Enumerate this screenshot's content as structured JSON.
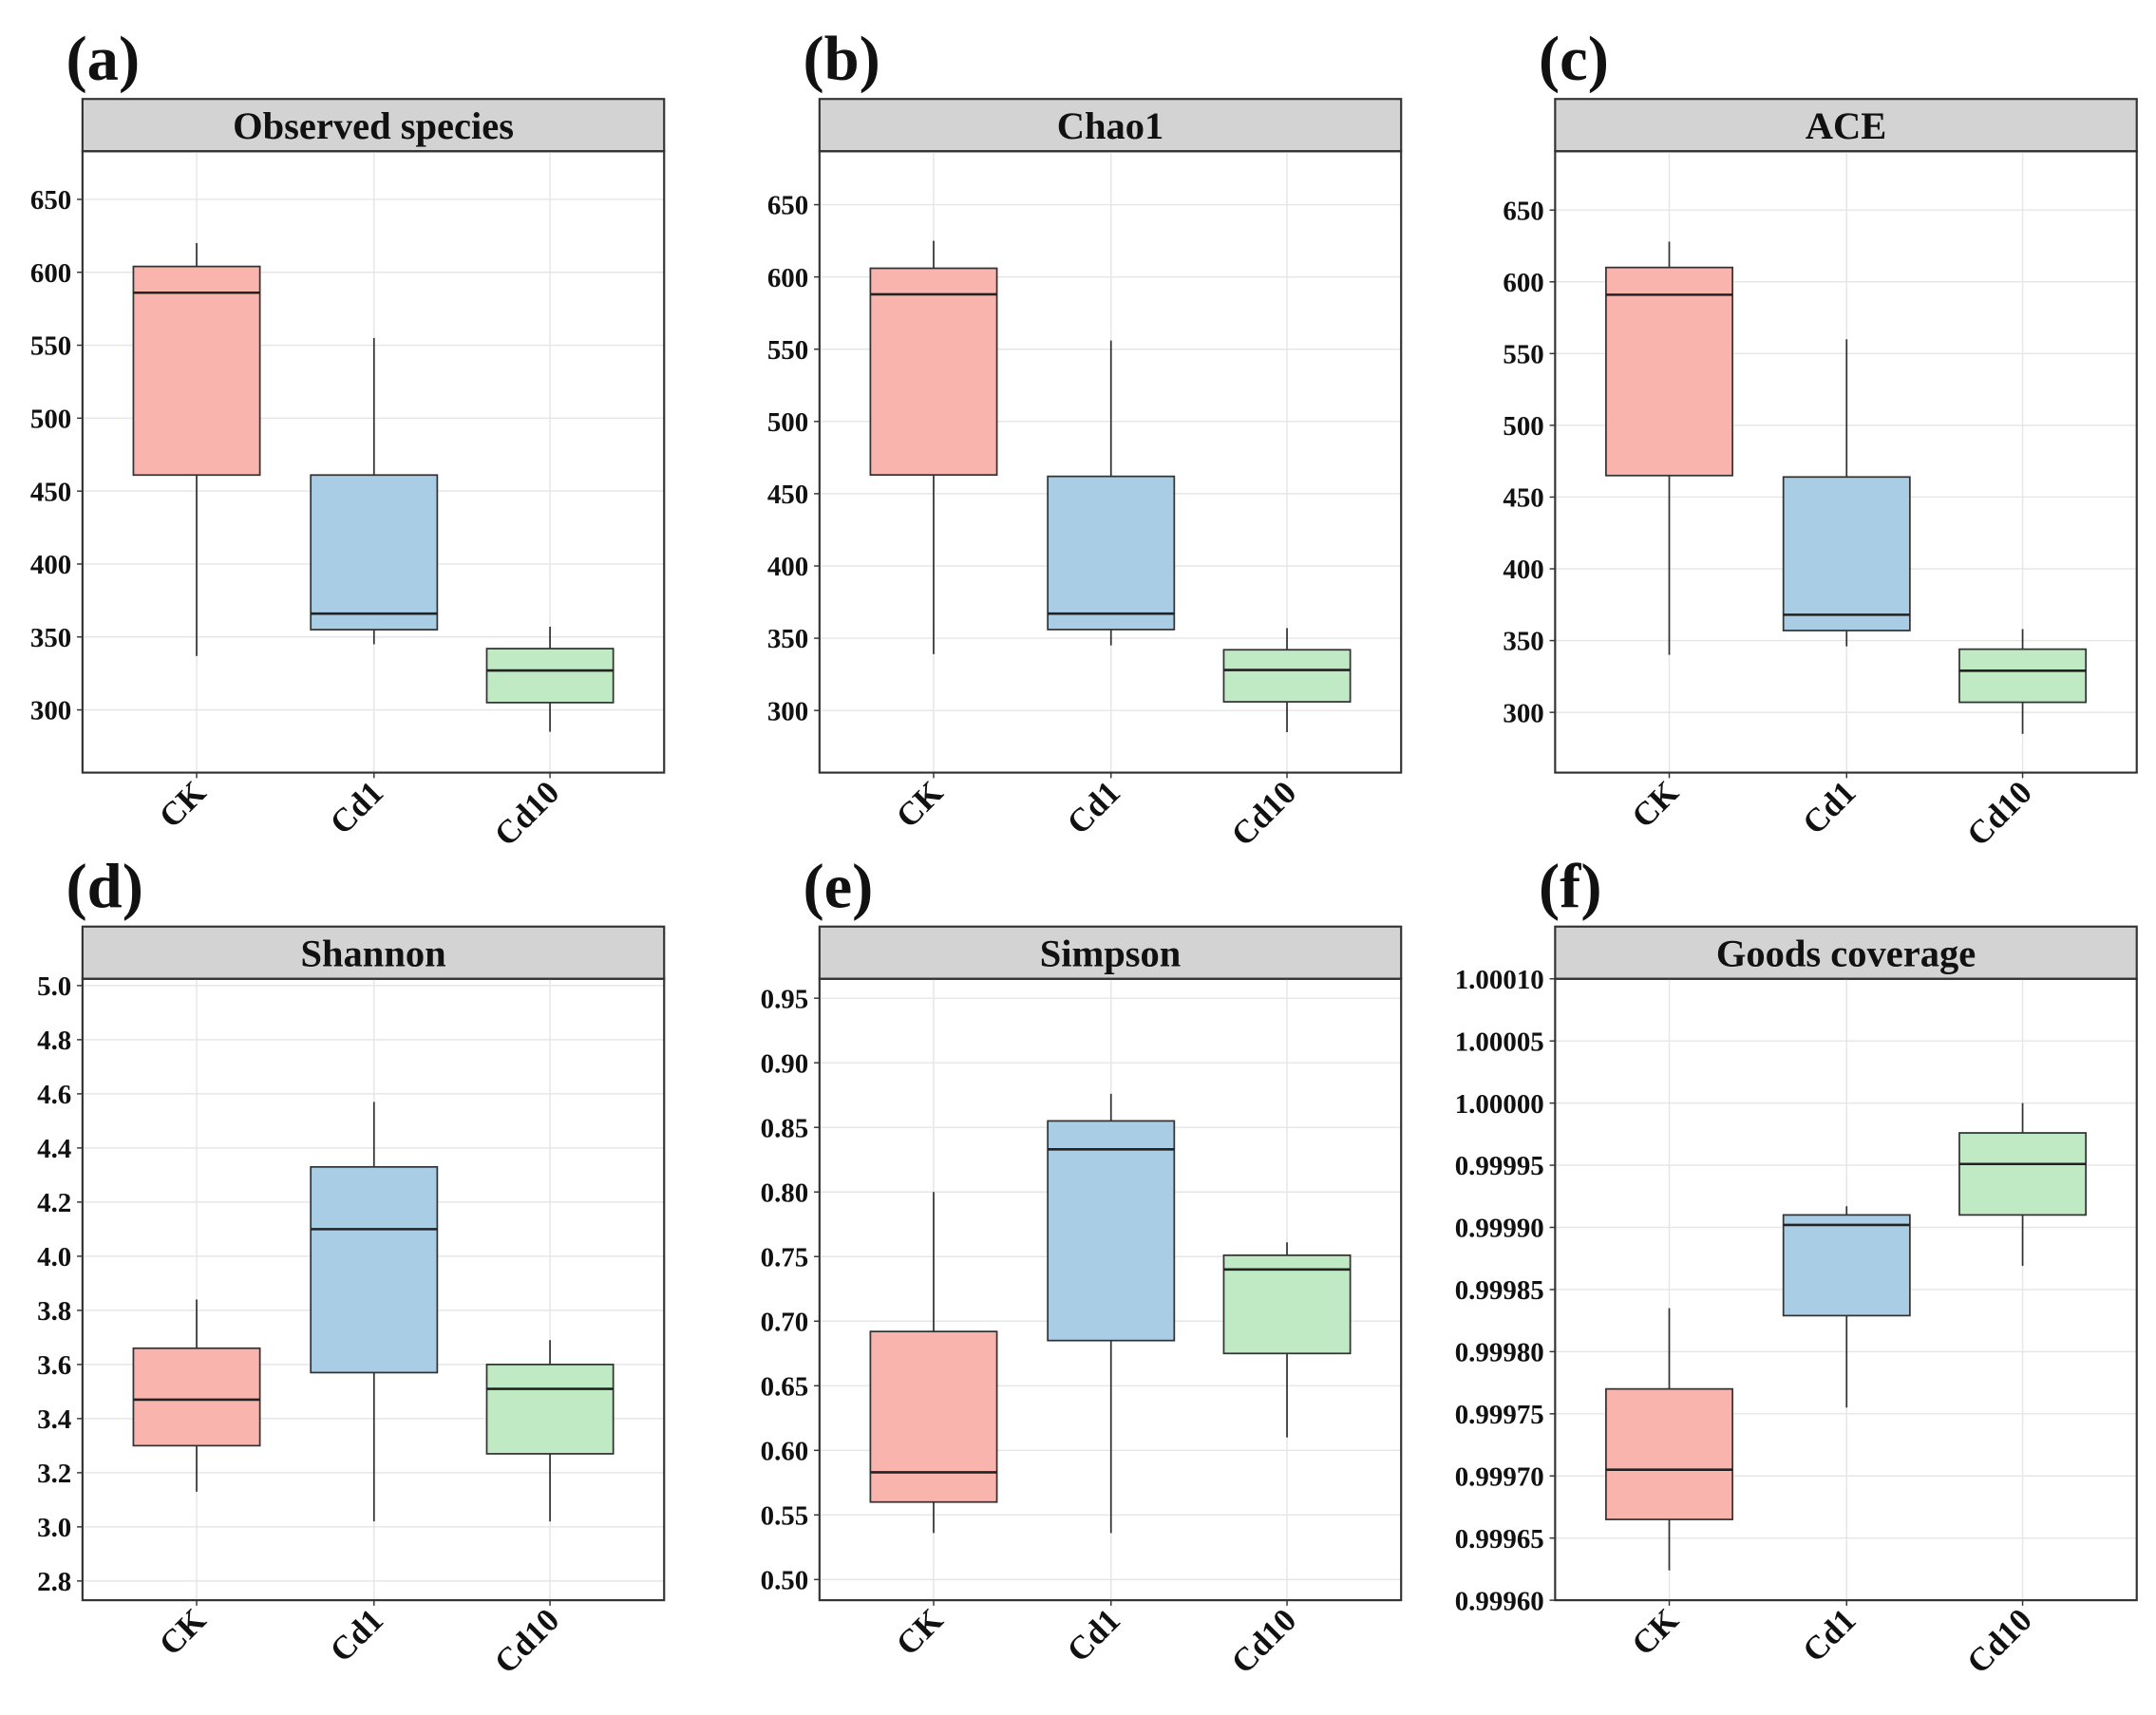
{
  "chart_data": [
    {
      "type": "box",
      "panel": "(a)",
      "title": "Observed species",
      "categories": [
        "CK",
        "Cd1",
        "Cd10"
      ],
      "colors": [
        "#f9b4ae",
        "#a9cde5",
        "#c0eac4"
      ],
      "boxes": [
        {
          "min": 337,
          "q1": 461,
          "median": 586,
          "q3": 604,
          "max": 620
        },
        {
          "min": 345,
          "q1": 355,
          "median": 366,
          "q3": 461,
          "max": 555
        },
        {
          "min": 285,
          "q1": 305,
          "median": 327,
          "q3": 342,
          "max": 357
        }
      ],
      "ylim": [
        257,
        683
      ],
      "yticks": [
        300,
        350,
        400,
        450,
        500,
        550,
        600,
        650
      ],
      "grid": true
    },
    {
      "type": "box",
      "panel": "(b)",
      "title": "Chao1",
      "categories": [
        "CK",
        "Cd1",
        "Cd10"
      ],
      "colors": [
        "#f9b4ae",
        "#a9cde5",
        "#c0eac4"
      ],
      "boxes": [
        {
          "min": 339,
          "q1": 463,
          "median": 588,
          "q3": 606,
          "max": 625
        },
        {
          "min": 345,
          "q1": 356,
          "median": 367,
          "q3": 462,
          "max": 556
        },
        {
          "min": 285,
          "q1": 306,
          "median": 328,
          "q3": 342,
          "max": 357
        }
      ],
      "ylim": [
        257,
        687
      ],
      "yticks": [
        300,
        350,
        400,
        450,
        500,
        550,
        600,
        650
      ],
      "grid": true
    },
    {
      "type": "box",
      "panel": "(c)",
      "title": "ACE",
      "categories": [
        "CK",
        "Cd1",
        "Cd10"
      ],
      "colors": [
        "#f9b4ae",
        "#a9cde5",
        "#c0eac4"
      ],
      "boxes": [
        {
          "min": 340,
          "q1": 465,
          "median": 591,
          "q3": 610,
          "max": 628
        },
        {
          "min": 346,
          "q1": 357,
          "median": 368,
          "q3": 464,
          "max": 560
        },
        {
          "min": 285,
          "q1": 307,
          "median": 329,
          "q3": 344,
          "max": 358
        }
      ],
      "ylim": [
        258,
        691
      ],
      "yticks": [
        300,
        350,
        400,
        450,
        500,
        550,
        600,
        650
      ],
      "grid": true
    },
    {
      "type": "box",
      "panel": "(d)",
      "title": "Shannon",
      "categories": [
        "CK",
        "Cd1",
        "Cd10"
      ],
      "colors": [
        "#f9b4ae",
        "#a9cde5",
        "#c0eac4"
      ],
      "boxes": [
        {
          "min": 3.13,
          "q1": 3.3,
          "median": 3.47,
          "q3": 3.66,
          "max": 3.84
        },
        {
          "min": 3.02,
          "q1": 3.57,
          "median": 4.1,
          "q3": 4.33,
          "max": 4.57
        },
        {
          "min": 3.02,
          "q1": 3.27,
          "median": 3.51,
          "q3": 3.6,
          "max": 3.69
        }
      ],
      "ylim": [
        2.729,
        5.025
      ],
      "yticks": [
        2.8,
        {
          "value": 3,
          "label": "3.0"
        },
        3.2,
        3.4,
        3.6,
        3.8,
        {
          "value": 4,
          "label": "4.0"
        },
        4.2,
        4.4,
        4.6,
        4.8,
        {
          "value": 5,
          "label": "5.0"
        }
      ],
      "grid": true
    },
    {
      "type": "box",
      "panel": "(e)",
      "title": "Simpson",
      "categories": [
        "CK",
        "Cd1",
        "Cd10"
      ],
      "colors": [
        "#f9b4ae",
        "#a9cde5",
        "#c0eac4"
      ],
      "boxes": [
        {
          "min": 0.536,
          "q1": 0.56,
          "median": 0.583,
          "q3": 0.692,
          "max": 0.8
        },
        {
          "min": 0.536,
          "q1": 0.685,
          "median": 0.833,
          "q3": 0.855,
          "max": 0.876
        },
        {
          "min": 0.61,
          "q1": 0.675,
          "median": 0.74,
          "q3": 0.751,
          "max": 0.761
        }
      ],
      "ylim": [
        0.484,
        0.965
      ],
      "yticks": [
        {
          "value": 0.5,
          "label": "0.50"
        },
        0.55,
        {
          "value": 0.6,
          "label": "0.60"
        },
        0.65,
        {
          "value": 0.7,
          "label": "0.70"
        },
        0.75,
        {
          "value": 0.8,
          "label": "0.80"
        },
        0.85,
        {
          "value": 0.9,
          "label": "0.90"
        },
        0.95
      ],
      "grid": true
    },
    {
      "type": "box",
      "panel": "(f)",
      "title": "Goods coverage",
      "categories": [
        "CK",
        "Cd1",
        "Cd10"
      ],
      "colors": [
        "#f9b4ae",
        "#a9cde5",
        "#c0eac4"
      ],
      "boxes": [
        {
          "min": 0.999624,
          "q1": 0.999665,
          "median": 0.999705,
          "q3": 0.99977,
          "max": 0.999835
        },
        {
          "min": 0.999755,
          "q1": 0.999829,
          "median": 0.999902,
          "q3": 0.99991,
          "max": 0.999917
        },
        {
          "min": 0.999869,
          "q1": 0.99991,
          "median": 0.999951,
          "q3": 0.999976,
          "max": 1.0
        }
      ],
      "ylim": [
        0.9996,
        1.0001
      ],
      "yticks": [
        {
          "value": 0.9996,
          "label": "0.99960"
        },
        {
          "value": 0.99965,
          "label": "0.99965"
        },
        {
          "value": 0.9997,
          "label": "0.99970"
        },
        {
          "value": 0.99975,
          "label": "0.99975"
        },
        {
          "value": 0.9998,
          "label": "0.99980"
        },
        {
          "value": 0.99985,
          "label": "0.99985"
        },
        {
          "value": 0.9999,
          "label": "0.99990"
        },
        {
          "value": 0.99995,
          "label": "0.99995"
        },
        {
          "value": 1.0,
          "label": "1.00000"
        },
        {
          "value": 1.00005,
          "label": "1.00005"
        },
        {
          "value": 1.0001,
          "label": "1.00010"
        }
      ],
      "grid": true
    }
  ]
}
